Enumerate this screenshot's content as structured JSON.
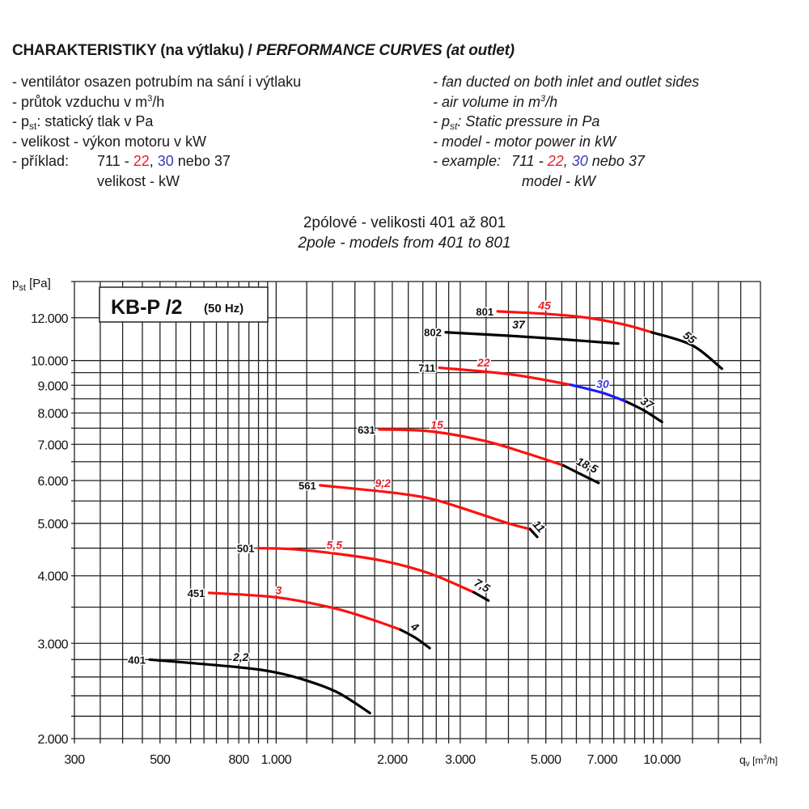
{
  "header": {
    "title_cz": "CHARAKTERISTIKY (na výtlaku) / ",
    "title_en": "PERFORMANCE CURVES (at outlet)"
  },
  "notes_cz": {
    "l1": "-  ventilátor osazen potrubím na sání i výtlaku",
    "l2a": "-  průtok vzduchu v m",
    "l2sup": "3",
    "l2b": "/h",
    "l3a": "-  p",
    "l3sub": "st",
    "l3b": ": statický tlak v Pa",
    "l4": "-  velikost - výkon motoru v kW",
    "l5a": "-  příklad:",
    "l5b": "711 - ",
    "l5red": "22",
    "l5c": ", ",
    "l5blue": "30",
    "l5d": " nebo 37",
    "l6": "velikost - kW"
  },
  "notes_en": {
    "l1": "-  fan ducted on both inlet and outlet sides",
    "l2a": "-  air volume in m",
    "l2sup": "3",
    "l2b": "/h",
    "l3a": "-  p",
    "l3sub": "st",
    "l3b": ": Static pressure in Pa",
    "l4": "-  model - motor power in kW",
    "l5a": "-  example:",
    "l5b": "711 - ",
    "l5red": "22",
    "l5c": ", ",
    "l5blue": "30",
    "l5d": " nebo 37",
    "l6": "model - kW"
  },
  "subtitle": {
    "cz": "2pólové - velikosti 401 až 801",
    "en": "2pole - models from 401 to 801"
  },
  "chart_data": {
    "type": "line",
    "title": "KB-P /2",
    "title_note": "(50 Hz)",
    "xlabel": {
      "main": "q",
      "sub": "v",
      "unit_a": " [m",
      "unit_sup": "3",
      "unit_b": "/h]"
    },
    "ylabel": {
      "main": "p",
      "sub": "st",
      "unit": " [Pa]"
    },
    "x_scale": "log",
    "y_scale": "log",
    "xlim": [
      300,
      18000
    ],
    "ylim": [
      2000,
      14000
    ],
    "grid": true,
    "x_ticks": [
      {
        "v": 300,
        "label": "300"
      },
      {
        "v": 500,
        "label": "500"
      },
      {
        "v": 800,
        "label": "800"
      },
      {
        "v": 1000,
        "label": "1.000"
      },
      {
        "v": 2000,
        "label": "2.000"
      },
      {
        "v": 3000,
        "label": "3.000"
      },
      {
        "v": 5000,
        "label": "5.000"
      },
      {
        "v": 7000,
        "label": "7.000"
      },
      {
        "v": 10000,
        "label": "10.000"
      }
    ],
    "y_ticks": [
      {
        "v": 2000,
        "label": "2.000"
      },
      {
        "v": 3000,
        "label": "3.000"
      },
      {
        "v": 4000,
        "label": "4.000"
      },
      {
        "v": 5000,
        "label": "5.000"
      },
      {
        "v": 6000,
        "label": "6.000"
      },
      {
        "v": 7000,
        "label": "7.000"
      },
      {
        "v": 8000,
        "label": "8.000"
      },
      {
        "v": 9000,
        "label": "9.000"
      },
      {
        "v": 10000,
        "label": "10.000"
      },
      {
        "v": 12000,
        "label": "12.000"
      }
    ],
    "x_grid": [
      300,
      350,
      400,
      450,
      500,
      550,
      600,
      650,
      700,
      750,
      800,
      850,
      900,
      950,
      1000,
      1200,
      1400,
      1600,
      1800,
      2000,
      2200,
      2400,
      2600,
      2800,
      3000,
      3500,
      4000,
      4500,
      5000,
      5500,
      6000,
      6500,
      7000,
      7500,
      8000,
      8500,
      9000,
      9500,
      10000,
      12000,
      14000,
      16000,
      18000
    ],
    "y_grid": [
      2000,
      2200,
      2400,
      2600,
      2800,
      3000,
      3500,
      4000,
      4500,
      5000,
      5500,
      6000,
      6500,
      7000,
      7500,
      8000,
      8500,
      9000,
      9500,
      10000,
      12000,
      14000
    ],
    "colors": {
      "red": "#ff1010",
      "blue": "#1a1aff",
      "black": "#000000",
      "red_label": "#e8202a",
      "blue_label": "#3a3ae0"
    },
    "series": [
      {
        "name": "401",
        "segments": [
          {
            "color": "black",
            "points": [
              [
                470,
                2800
              ],
              [
                800,
                2710
              ],
              [
                1000,
                2650
              ],
              [
                1200,
                2560
              ],
              [
                1450,
                2430
              ],
              [
                1750,
                2230
              ]
            ]
          }
        ],
        "labels": [
          {
            "text": "2,2",
            "color": "black",
            "q": 810,
            "p": 2830
          }
        ]
      },
      {
        "name": "451",
        "segments": [
          {
            "color": "red",
            "points": [
              [
                670,
                3720
              ],
              [
                1000,
                3650
              ],
              [
                1400,
                3490
              ],
              [
                1750,
                3330
              ],
              [
                2100,
                3180
              ]
            ]
          },
          {
            "color": "black",
            "points": [
              [
                2100,
                3180
              ],
              [
                2300,
                3070
              ],
              [
                2500,
                2940
              ]
            ]
          }
        ],
        "labels": [
          {
            "text": "3",
            "color": "red",
            "q": 1015,
            "p": 3760
          },
          {
            "text": "4",
            "color": "black",
            "q": 2290,
            "p": 3220,
            "tilted": true
          }
        ]
      },
      {
        "name": "501",
        "segments": [
          {
            "color": "red",
            "points": [
              [
                900,
                4500
              ],
              [
                1100,
                4480
              ],
              [
                1450,
                4390
              ],
              [
                1900,
                4260
              ],
              [
                2500,
                4040
              ],
              [
                3250,
                3730
              ]
            ]
          },
          {
            "color": "black",
            "points": [
              [
                3250,
                3730
              ],
              [
                3550,
                3600
              ]
            ]
          }
        ],
        "labels": [
          {
            "text": "5,5",
            "color": "red",
            "q": 1415,
            "p": 4560
          },
          {
            "text": "7,5",
            "color": "black",
            "q": 3420,
            "p": 3840,
            "tilted": true
          }
        ]
      },
      {
        "name": "561",
        "segments": [
          {
            "color": "red",
            "points": [
              [
                1300,
                5880
              ],
              [
                2000,
                5700
              ],
              [
                2500,
                5560
              ],
              [
                3000,
                5350
              ],
              [
                4000,
                5000
              ],
              [
                4550,
                4880
              ]
            ]
          },
          {
            "color": "black",
            "points": [
              [
                4550,
                4880
              ],
              [
                4750,
                4720
              ]
            ]
          }
        ],
        "labels": [
          {
            "text": "9,2",
            "color": "red",
            "q": 1890,
            "p": 5940
          },
          {
            "text": "11",
            "color": "black",
            "q": 4800,
            "p": 4940,
            "tilted": true
          }
        ]
      },
      {
        "name": "631",
        "segments": [
          {
            "color": "red",
            "points": [
              [
                1850,
                7460
              ],
              [
                2500,
                7400
              ],
              [
                3450,
                7110
              ],
              [
                4450,
                6740
              ],
              [
                5550,
                6400
              ]
            ]
          },
          {
            "color": "black",
            "points": [
              [
                5550,
                6400
              ],
              [
                6200,
                6150
              ],
              [
                6850,
                5940
              ]
            ]
          }
        ],
        "labels": [
          {
            "text": "15",
            "color": "red",
            "q": 2610,
            "p": 7610
          },
          {
            "text": "18,5",
            "color": "black",
            "q": 6400,
            "p": 6410,
            "tilted": true
          }
        ]
      },
      {
        "name": "711",
        "segments": [
          {
            "color": "red",
            "points": [
              [
                2650,
                9700
              ],
              [
                4050,
                9430
              ],
              [
                5800,
                9020
              ]
            ]
          },
          {
            "color": "blue",
            "points": [
              [
                5800,
                9020
              ],
              [
                7000,
                8720
              ],
              [
                8100,
                8390
              ]
            ]
          },
          {
            "color": "black",
            "points": [
              [
                8100,
                8390
              ],
              [
                9000,
                8080
              ],
              [
                10000,
                7700
              ]
            ]
          }
        ],
        "labels": [
          {
            "text": "22",
            "color": "red",
            "q": 3450,
            "p": 9920
          },
          {
            "text": "30",
            "color": "blue",
            "q": 7020,
            "p": 9050
          },
          {
            "text": "37",
            "color": "black",
            "q": 9150,
            "p": 8350,
            "tilted": true
          }
        ]
      },
      {
        "name": "801",
        "segments": [
          {
            "color": "red",
            "points": [
              [
                3750,
                12330
              ],
              [
                5000,
                12200
              ],
              [
                6400,
                12000
              ],
              [
                8000,
                11650
              ],
              [
                9400,
                11280
              ]
            ]
          },
          {
            "color": "black",
            "points": [
              [
                9400,
                11280
              ],
              [
                11950,
                10680
              ],
              [
                14300,
                9660
              ]
            ]
          }
        ],
        "labels": [
          {
            "text": "45",
            "color": "red",
            "q": 4960,
            "p": 12640
          },
          {
            "text": "55",
            "color": "black",
            "q": 11800,
            "p": 11040,
            "tilted": true
          }
        ]
      },
      {
        "name": "802",
        "segments": [
          {
            "color": "black",
            "points": [
              [
                2750,
                11280
              ],
              [
                4050,
                11110
              ],
              [
                5500,
                10950
              ],
              [
                7700,
                10750
              ]
            ]
          }
        ],
        "labels": [
          {
            "text": "37",
            "color": "black",
            "q": 4250,
            "p": 11660
          }
        ]
      }
    ]
  }
}
